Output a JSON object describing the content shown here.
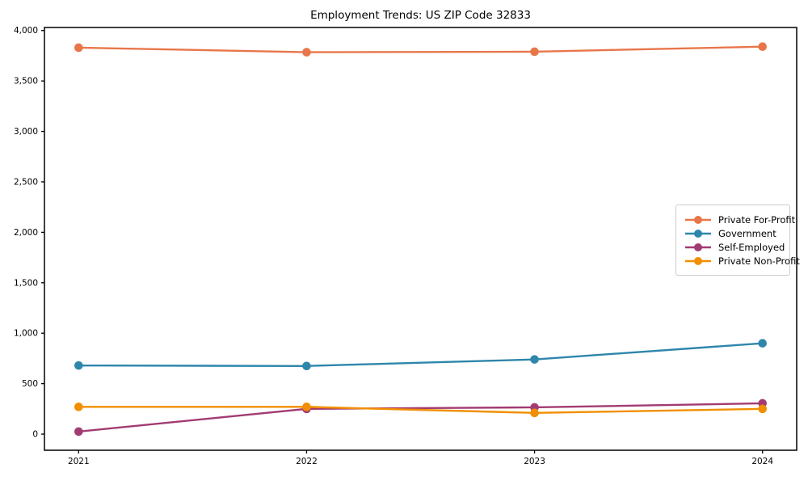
{
  "chart_data": {
    "type": "line",
    "title": "Employment Trends: US ZIP Code 32833",
    "x": [
      2021,
      2022,
      2023,
      2024
    ],
    "xtick_labels": [
      "2021",
      "2022",
      "2023",
      "2024"
    ],
    "series": [
      {
        "name": "Private For-Profit",
        "color": "#e8764a",
        "values": [
          3830,
          3785,
          3790,
          3840
        ]
      },
      {
        "name": "Government",
        "color": "#2e86ab",
        "values": [
          680,
          675,
          740,
          900
        ]
      },
      {
        "name": "Self-Employed",
        "color": "#a23b72",
        "values": [
          25,
          250,
          265,
          305
        ]
      },
      {
        "name": "Private Non-Profit",
        "color": "#f18f01",
        "values": [
          270,
          270,
          210,
          250
        ]
      }
    ],
    "yticks": [
      0,
      500,
      1000,
      1500,
      2000,
      2500,
      3000,
      3500,
      4000
    ],
    "ytick_labels": [
      "0",
      "500",
      "1,000",
      "1,500",
      "2,000",
      "2,500",
      "3,000",
      "3,500",
      "4,000"
    ],
    "ylim": [
      -160,
      4030
    ],
    "xlim": [
      2020.85,
      2024.15
    ],
    "grid": false,
    "legend_position": "center-right",
    "axis_color": "#000000",
    "background_color": "#ffffff"
  }
}
